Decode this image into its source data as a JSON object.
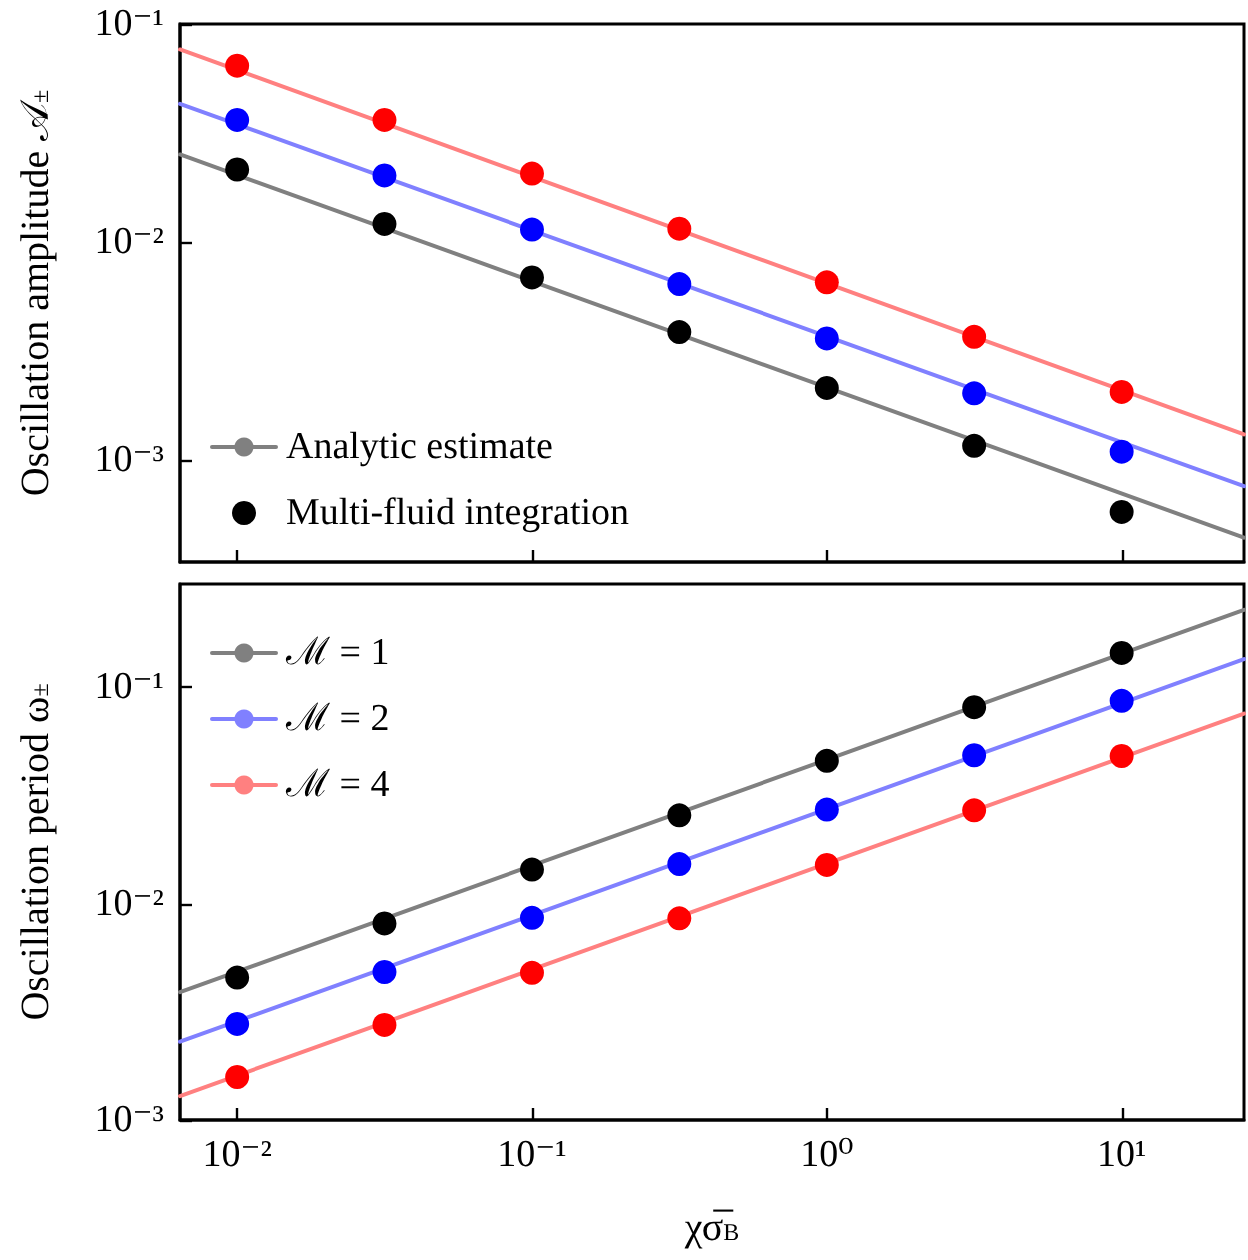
{
  "chart_data": [
    {
      "type": "line",
      "ylabel": "Oscillation amplitude 𝒜$_{±}$",
      "log": "xy",
      "legend": "bottom left",
      "tick_labels": "y",
      "grid": false,
      "xlim": [
        0.0064,
        26
      ],
      "ylim": [
        0.00034,
        0.1
      ],
      "xticks": [
        {
          "value": 0.01,
          "label": null
        },
        {
          "value": 0.1,
          "label": null
        },
        {
          "value": 1,
          "label": null
        },
        {
          "value": 10,
          "label": null
        }
      ],
      "yticks": [
        {
          "value": 0.001,
          "label": "10⁻³"
        },
        {
          "value": 0.01,
          "label": "10⁻²"
        },
        {
          "value": 0.1,
          "label": "10⁻¹"
        }
      ],
      "series": [
        {
          "name": "Analytic estimate",
          "marker": "none",
          "line_style": "solid",
          "color": "#808080",
          "x": [
            0.0064,
            26
          ],
          "values": [
            0.0252,
            0.00044
          ]
        },
        {
          "marker": "none",
          "line_style": "solid",
          "color": "#8080ff",
          "x": [
            0.0064,
            26
          ],
          "values": [
            0.043,
            0.000757
          ]
        },
        {
          "marker": "none",
          "line_style": "solid",
          "color": "#ff8080",
          "x": [
            0.0064,
            26
          ],
          "values": [
            0.0764,
            0.00131
          ]
        },
        {
          "name": "Multi-fluid integration",
          "type": "scatter",
          "marker": "circle",
          "color": "#000000",
          "x": [
            0.01,
            0.0316,
            0.1,
            0.316,
            1,
            3.16,
            10
          ],
          "values": [
            0.0215,
            0.0121,
            0.00687,
            0.00386,
            0.00214,
            0.00116,
            0.000577
          ]
        },
        {
          "type": "scatter",
          "marker": "circle",
          "color": "#0000ff",
          "x": [
            0.01,
            0.0316,
            0.1,
            0.316,
            1,
            3.16,
            10
          ],
          "values": [
            0.0363,
            0.0202,
            0.0114,
            0.00641,
            0.00361,
            0.00202,
            0.00109
          ]
        },
        {
          "type": "scatter",
          "marker": "circle",
          "color": "#ff0000",
          "x": [
            0.01,
            0.0316,
            0.1,
            0.316,
            1,
            3.16,
            10
          ],
          "values": [
            0.0644,
            0.0363,
            0.0206,
            0.0115,
            0.00653,
            0.00367,
            0.00205
          ]
        }
      ]
    },
    {
      "type": "line",
      "xlabel": "χσ̅$_{B}$",
      "ylabel": "Oscillation period ω$_{±}$",
      "log": "xy",
      "legend": "top left",
      "grid": false,
      "xlim": [
        0.0064,
        26
      ],
      "ylim": [
        0.001,
        0.3
      ],
      "xticks": [
        {
          "value": 0.01,
          "label": "10⁻²"
        },
        {
          "value": 0.1,
          "label": "10⁻¹"
        },
        {
          "value": 1,
          "label": "10⁰"
        },
        {
          "value": 10,
          "label": "10¹"
        }
      ],
      "yticks": [
        {
          "value": 0.001,
          "label": "10⁻³"
        },
        {
          "value": 0.01,
          "label": "10⁻²"
        },
        {
          "value": 0.1,
          "label": "10⁻¹"
        }
      ],
      "series": [
        {
          "name": "ℳ = 1",
          "marker": "none",
          "line_style": "solid",
          "color": "#808080",
          "x": [
            0.0064,
            26
          ],
          "values": [
            0.0039,
            0.228
          ]
        },
        {
          "name": "ℳ = 2",
          "marker": "none",
          "line_style": "solid",
          "color": "#8080ff",
          "x": [
            0.0064,
            26
          ],
          "values": [
            0.0023,
            0.135
          ]
        },
        {
          "name": "ℳ = 4",
          "marker": "none",
          "line_style": "solid",
          "color": "#ff8080",
          "x": [
            0.0064,
            26
          ],
          "values": [
            0.00129,
            0.0755
          ]
        },
        {
          "type": "scatter",
          "marker": "circle",
          "color": "#000000",
          "x": [
            0.01,
            0.0316,
            0.1,
            0.316,
            1,
            3.16,
            10
          ],
          "values": [
            0.00455,
            0.0081,
            0.01436,
            0.0256,
            0.0457,
            0.0809,
            0.144
          ]
        },
        {
          "type": "scatter",
          "marker": "circle",
          "color": "#0000ff",
          "x": [
            0.01,
            0.0316,
            0.1,
            0.316,
            1,
            3.16,
            10
          ],
          "values": [
            0.00278,
            0.00483,
            0.0086,
            0.01524,
            0.0272,
            0.0485,
            0.0865
          ]
        },
        {
          "type": "scatter",
          "marker": "circle",
          "color": "#ff0000",
          "x": [
            0.01,
            0.0316,
            0.1,
            0.316,
            1,
            3.16,
            10
          ],
          "values": [
            0.00158,
            0.00275,
            0.00479,
            0.00855,
            0.0151,
            0.027,
            0.0481
          ]
        }
      ]
    }
  ]
}
